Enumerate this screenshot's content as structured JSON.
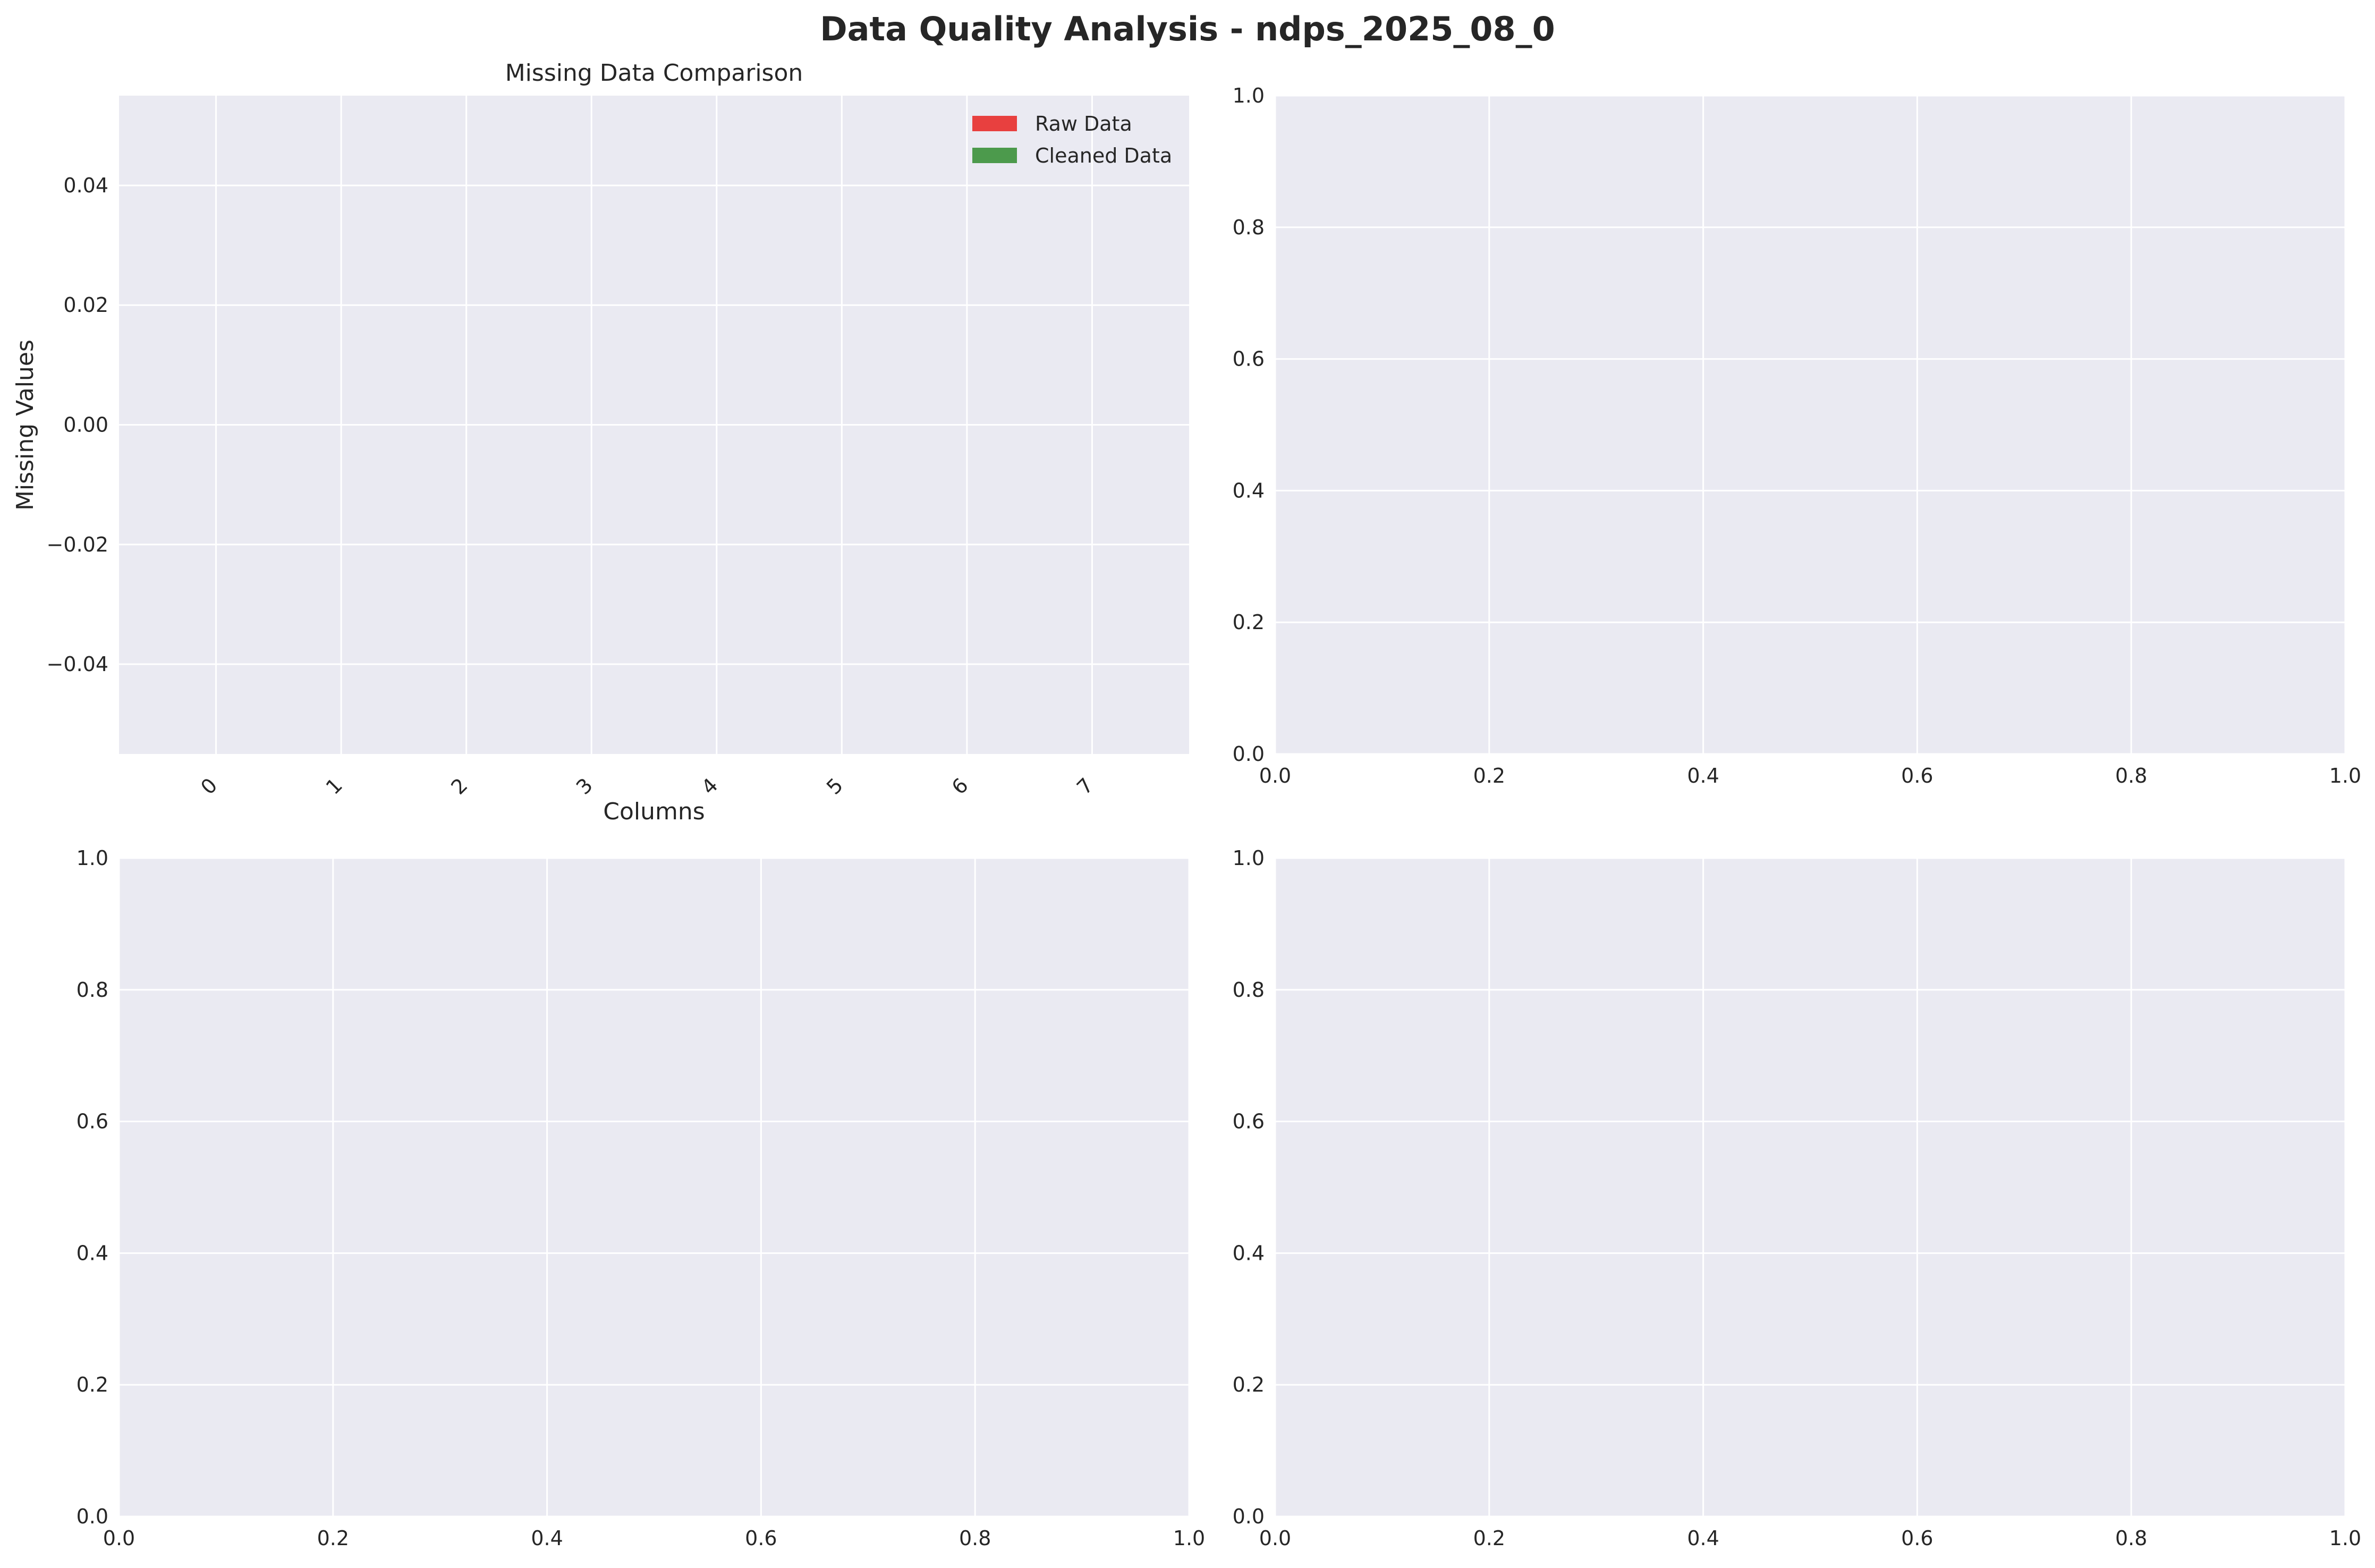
{
  "figure_title": "Data Quality Analysis - ndps_2025_08_0",
  "style": {
    "axes_bg": "#eaeaf2",
    "grid_color": "#ffffff",
    "text_color": "#262626"
  },
  "chart_data": [
    {
      "type": "bar",
      "title": "Missing Data Comparison",
      "xlabel": "Columns",
      "ylabel": "Missing Values",
      "categories": [
        "0",
        "1",
        "2",
        "3",
        "4",
        "5",
        "6",
        "7"
      ],
      "category_tick_rotation_deg": 45,
      "series": [
        {
          "name": "Raw Data",
          "color": "#e8403f",
          "values": [
            0,
            0,
            0,
            0,
            0,
            0,
            0,
            0
          ]
        },
        {
          "name": "Cleaned Data",
          "color": "#4c9a4c",
          "values": [
            0,
            0,
            0,
            0,
            0,
            0,
            0,
            0
          ]
        }
      ],
      "ylim": [
        -0.055,
        0.055
      ],
      "yticks": [
        "0.04",
        "0.02",
        "0.00",
        "−0.02",
        "−0.04"
      ],
      "ytick_values": [
        0.04,
        0.02,
        0.0,
        -0.02,
        -0.04
      ],
      "grid": true,
      "legend": "upper right"
    },
    {
      "type": "scatter",
      "title": "",
      "xlabel": "",
      "ylabel": "",
      "xlim": [
        0,
        1
      ],
      "ylim": [
        0,
        1
      ],
      "xticks": [
        "0.0",
        "0.2",
        "0.4",
        "0.6",
        "0.8",
        "1.0"
      ],
      "yticks": [
        "0.0",
        "0.2",
        "0.4",
        "0.6",
        "0.8",
        "1.0"
      ],
      "series": [],
      "grid": true
    },
    {
      "type": "scatter",
      "title": "",
      "xlabel": "",
      "ylabel": "",
      "xlim": [
        0,
        1
      ],
      "ylim": [
        0,
        1
      ],
      "xticks": [
        "0.0",
        "0.2",
        "0.4",
        "0.6",
        "0.8",
        "1.0"
      ],
      "yticks": [
        "0.0",
        "0.2",
        "0.4",
        "0.6",
        "0.8",
        "1.0"
      ],
      "series": [],
      "grid": true
    },
    {
      "type": "scatter",
      "title": "",
      "xlabel": "",
      "ylabel": "",
      "xlim": [
        0,
        1
      ],
      "ylim": [
        0,
        1
      ],
      "xticks": [
        "0.0",
        "0.2",
        "0.4",
        "0.6",
        "0.8",
        "1.0"
      ],
      "yticks": [
        "0.0",
        "0.2",
        "0.4",
        "0.6",
        "0.8",
        "1.0"
      ],
      "series": [],
      "grid": true
    }
  ]
}
